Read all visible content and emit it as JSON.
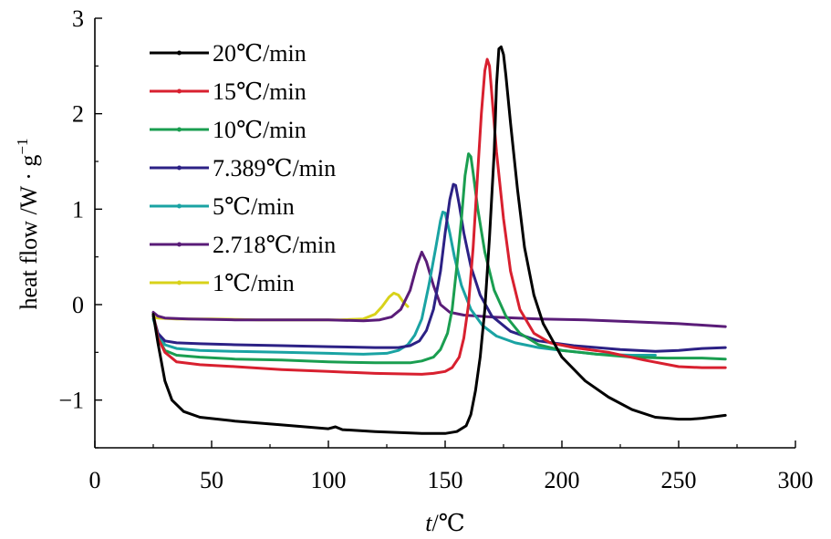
{
  "chart_data": {
    "type": "line",
    "xlabel_italic": "t",
    "xlabel_rest": "/℃",
    "ylabel": "heat flow /W · g",
    "ylabel_sup": "−1",
    "xlim": [
      0,
      300
    ],
    "ylim": [
      -1.5,
      3
    ],
    "xticks": [
      0,
      50,
      100,
      150,
      200,
      250,
      300
    ],
    "xtick_labels": [
      "0",
      "50",
      "100",
      "150",
      "200",
      "250",
      "300"
    ],
    "yticks": [
      -1,
      0,
      1,
      2,
      3
    ],
    "ytick_labels": [
      "−1",
      "0",
      "1",
      "2",
      "3"
    ],
    "grid": false,
    "legend_position": "top-left",
    "series": [
      {
        "name": "20℃/min",
        "color": "#000000",
        "points": [
          [
            25,
            -0.1
          ],
          [
            27,
            -0.4
          ],
          [
            30,
            -0.8
          ],
          [
            33,
            -1.0
          ],
          [
            38,
            -1.12
          ],
          [
            45,
            -1.18
          ],
          [
            60,
            -1.22
          ],
          [
            80,
            -1.26
          ],
          [
            100,
            -1.3
          ],
          [
            103,
            -1.28
          ],
          [
            106,
            -1.31
          ],
          [
            120,
            -1.33
          ],
          [
            140,
            -1.35
          ],
          [
            150,
            -1.35
          ],
          [
            155,
            -1.33
          ],
          [
            159,
            -1.27
          ],
          [
            161,
            -1.15
          ],
          [
            163,
            -0.9
          ],
          [
            165,
            -0.55
          ],
          [
            167,
            -0.05
          ],
          [
            169,
            0.7
          ],
          [
            171,
            1.6
          ],
          [
            172,
            2.3
          ],
          [
            173,
            2.68
          ],
          [
            174,
            2.7
          ],
          [
            175,
            2.62
          ],
          [
            176,
            2.4
          ],
          [
            178,
            1.9
          ],
          [
            181,
            1.2
          ],
          [
            184,
            0.6
          ],
          [
            188,
            0.1
          ],
          [
            192,
            -0.2
          ],
          [
            200,
            -0.55
          ],
          [
            210,
            -0.8
          ],
          [
            220,
            -0.97
          ],
          [
            230,
            -1.1
          ],
          [
            240,
            -1.18
          ],
          [
            250,
            -1.2
          ],
          [
            255,
            -1.2
          ],
          [
            260,
            -1.19
          ],
          [
            270,
            -1.16
          ]
        ]
      },
      {
        "name": "15℃/min",
        "color": "#d8202f",
        "points": [
          [
            25,
            -0.1
          ],
          [
            27,
            -0.35
          ],
          [
            30,
            -0.5
          ],
          [
            35,
            -0.6
          ],
          [
            45,
            -0.63
          ],
          [
            60,
            -0.65
          ],
          [
            80,
            -0.68
          ],
          [
            100,
            -0.7
          ],
          [
            120,
            -0.72
          ],
          [
            140,
            -0.73
          ],
          [
            145,
            -0.72
          ],
          [
            150,
            -0.7
          ],
          [
            153,
            -0.66
          ],
          [
            156,
            -0.55
          ],
          [
            158,
            -0.35
          ],
          [
            160,
            0.0
          ],
          [
            162,
            0.6
          ],
          [
            164,
            1.4
          ],
          [
            165.5,
            2.0
          ],
          [
            167,
            2.45
          ],
          [
            168,
            2.57
          ],
          [
            169,
            2.5
          ],
          [
            170,
            2.2
          ],
          [
            172,
            1.6
          ],
          [
            175,
            0.9
          ],
          [
            178,
            0.35
          ],
          [
            182,
            -0.05
          ],
          [
            188,
            -0.3
          ],
          [
            195,
            -0.4
          ],
          [
            205,
            -0.45
          ],
          [
            220,
            -0.5
          ],
          [
            235,
            -0.58
          ],
          [
            250,
            -0.65
          ],
          [
            260,
            -0.66
          ],
          [
            270,
            -0.66
          ]
        ]
      },
      {
        "name": "10℃/min",
        "color": "#1a9e50",
        "points": [
          [
            25,
            -0.1
          ],
          [
            27,
            -0.35
          ],
          [
            30,
            -0.48
          ],
          [
            35,
            -0.53
          ],
          [
            45,
            -0.55
          ],
          [
            60,
            -0.57
          ],
          [
            80,
            -0.58
          ],
          [
            100,
            -0.6
          ],
          [
            120,
            -0.61
          ],
          [
            135,
            -0.61
          ],
          [
            140,
            -0.59
          ],
          [
            145,
            -0.55
          ],
          [
            148,
            -0.47
          ],
          [
            151,
            -0.3
          ],
          [
            153,
            -0.05
          ],
          [
            155,
            0.4
          ],
          [
            157,
            0.9
          ],
          [
            158.5,
            1.35
          ],
          [
            160,
            1.58
          ],
          [
            161,
            1.55
          ],
          [
            162,
            1.38
          ],
          [
            164,
            1.0
          ],
          [
            167,
            0.55
          ],
          [
            171,
            0.15
          ],
          [
            176,
            -0.12
          ],
          [
            182,
            -0.3
          ],
          [
            190,
            -0.42
          ],
          [
            200,
            -0.48
          ],
          [
            215,
            -0.52
          ],
          [
            230,
            -0.55
          ],
          [
            245,
            -0.56
          ],
          [
            260,
            -0.56
          ],
          [
            270,
            -0.57
          ]
        ]
      },
      {
        "name": "7.389℃/min",
        "color": "#2c2185",
        "points": [
          [
            25,
            -0.12
          ],
          [
            27,
            -0.3
          ],
          [
            30,
            -0.38
          ],
          [
            35,
            -0.4
          ],
          [
            45,
            -0.41
          ],
          [
            60,
            -0.42
          ],
          [
            80,
            -0.43
          ],
          [
            100,
            -0.44
          ],
          [
            120,
            -0.45
          ],
          [
            130,
            -0.45
          ],
          [
            135,
            -0.43
          ],
          [
            139,
            -0.38
          ],
          [
            142,
            -0.27
          ],
          [
            145,
            -0.05
          ],
          [
            148,
            0.35
          ],
          [
            150,
            0.75
          ],
          [
            152,
            1.1
          ],
          [
            153.5,
            1.26
          ],
          [
            154.5,
            1.25
          ],
          [
            156,
            1.05
          ],
          [
            158,
            0.75
          ],
          [
            161,
            0.4
          ],
          [
            165,
            0.1
          ],
          [
            170,
            -0.12
          ],
          [
            178,
            -0.28
          ],
          [
            190,
            -0.38
          ],
          [
            205,
            -0.43
          ],
          [
            225,
            -0.47
          ],
          [
            240,
            -0.49
          ],
          [
            250,
            -0.48
          ],
          [
            260,
            -0.46
          ],
          [
            270,
            -0.45
          ]
        ]
      },
      {
        "name": "5℃/min",
        "color": "#1aa3a3",
        "points": [
          [
            25,
            -0.15
          ],
          [
            27,
            -0.3
          ],
          [
            30,
            -0.42
          ],
          [
            35,
            -0.46
          ],
          [
            45,
            -0.48
          ],
          [
            60,
            -0.49
          ],
          [
            80,
            -0.5
          ],
          [
            100,
            -0.51
          ],
          [
            115,
            -0.52
          ],
          [
            125,
            -0.51
          ],
          [
            130,
            -0.48
          ],
          [
            134,
            -0.42
          ],
          [
            137,
            -0.32
          ],
          [
            140,
            -0.15
          ],
          [
            143,
            0.2
          ],
          [
            146,
            0.6
          ],
          [
            148,
            0.88
          ],
          [
            149,
            0.97
          ],
          [
            150,
            0.96
          ],
          [
            152,
            0.75
          ],
          [
            154,
            0.5
          ],
          [
            157,
            0.2
          ],
          [
            161,
            -0.05
          ],
          [
            166,
            -0.22
          ],
          [
            172,
            -0.33
          ],
          [
            180,
            -0.4
          ],
          [
            190,
            -0.45
          ],
          [
            200,
            -0.48
          ],
          [
            215,
            -0.52
          ],
          [
            230,
            -0.53
          ],
          [
            240,
            -0.53
          ]
        ]
      },
      {
        "name": "2.718℃/min",
        "color": "#5a1c78",
        "points": [
          [
            25,
            -0.08
          ],
          [
            27,
            -0.12
          ],
          [
            30,
            -0.14
          ],
          [
            40,
            -0.15
          ],
          [
            60,
            -0.16
          ],
          [
            80,
            -0.16
          ],
          [
            100,
            -0.16
          ],
          [
            115,
            -0.17
          ],
          [
            122,
            -0.16
          ],
          [
            127,
            -0.13
          ],
          [
            131,
            -0.05
          ],
          [
            135,
            0.15
          ],
          [
            138,
            0.42
          ],
          [
            140,
            0.55
          ],
          [
            142,
            0.45
          ],
          [
            145,
            0.2
          ],
          [
            148,
            0.0
          ],
          [
            152,
            -0.08
          ],
          [
            158,
            -0.11
          ],
          [
            170,
            -0.13
          ],
          [
            190,
            -0.15
          ],
          [
            210,
            -0.16
          ],
          [
            230,
            -0.18
          ],
          [
            250,
            -0.2
          ],
          [
            270,
            -0.23
          ]
        ]
      },
      {
        "name": "1℃/min",
        "color": "#d8d21a",
        "points": [
          [
            25,
            -0.13
          ],
          [
            27,
            -0.14
          ],
          [
            35,
            -0.15
          ],
          [
            50,
            -0.15
          ],
          [
            70,
            -0.16
          ],
          [
            90,
            -0.16
          ],
          [
            105,
            -0.16
          ],
          [
            115,
            -0.15
          ],
          [
            120,
            -0.1
          ],
          [
            123,
            -0.02
          ],
          [
            126,
            0.08
          ],
          [
            128,
            0.12
          ],
          [
            130,
            0.1
          ],
          [
            132,
            0.03
          ],
          [
            134,
            -0.02
          ]
        ]
      }
    ]
  }
}
